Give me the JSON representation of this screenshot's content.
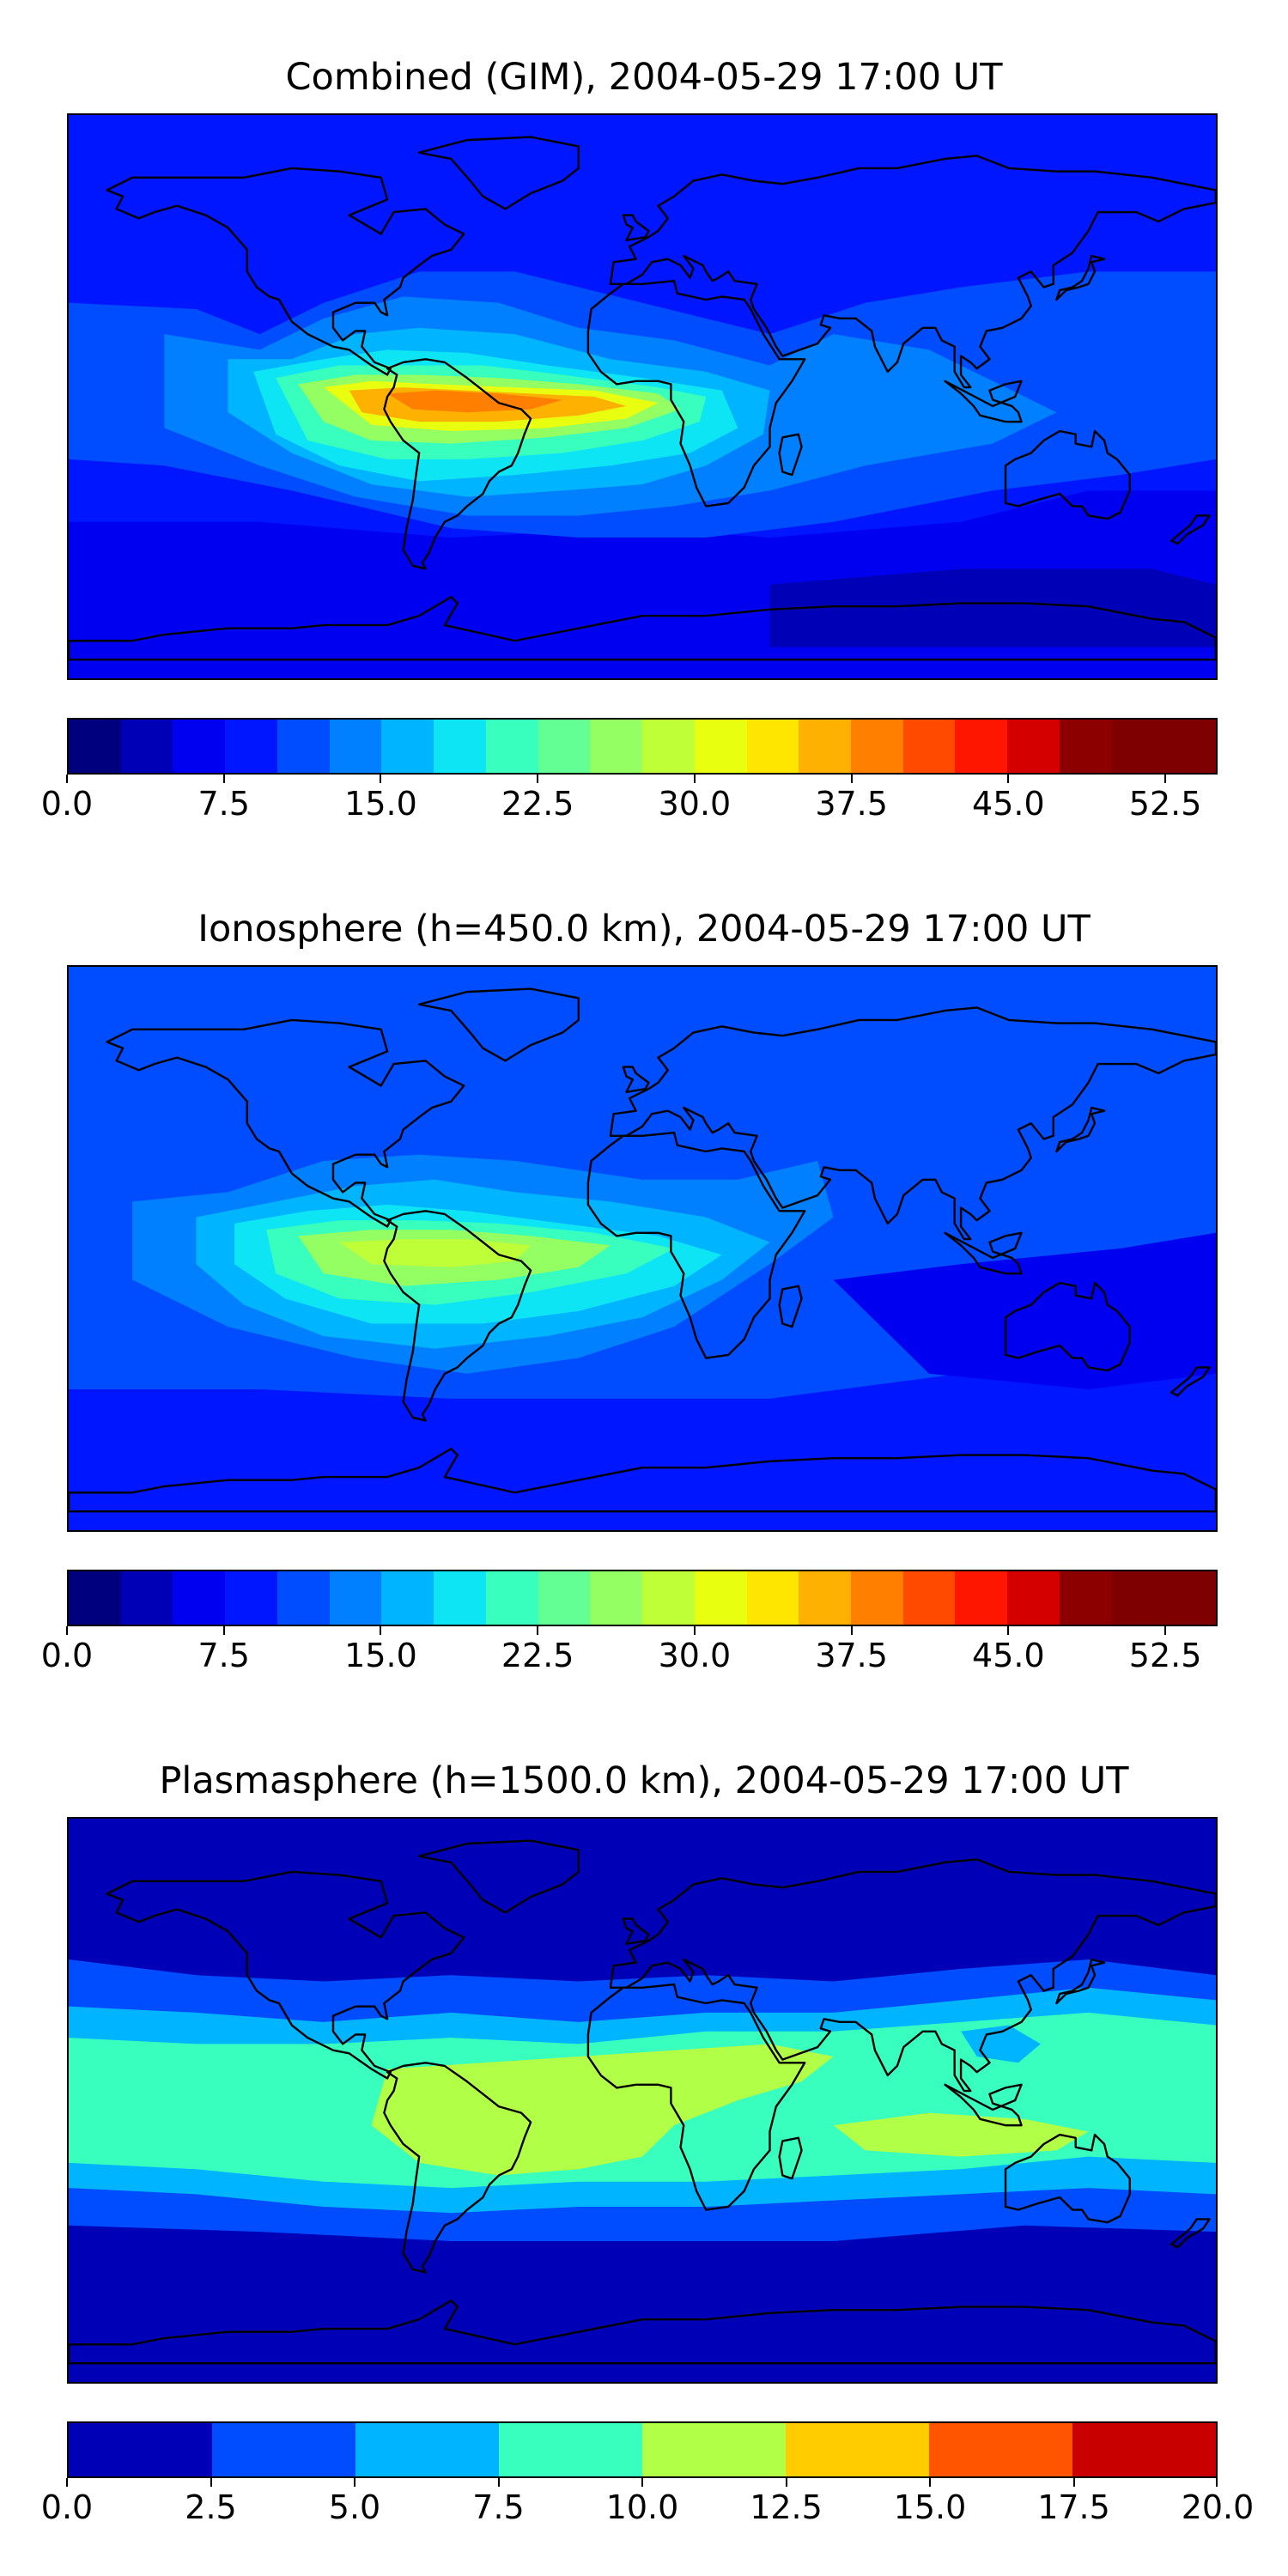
{
  "panels": [
    {
      "title": "Combined (GIM), 2004-05-29 17:00 UT",
      "colorbar": {
        "vmin": 0.0,
        "vmax": 55.0,
        "bins": 22,
        "colors": [
          "#00007f",
          "#0000b6",
          "#0000f1",
          "#0016ff",
          "#004cff",
          "#0080ff",
          "#00b4ff",
          "#0de5f4",
          "#38ffbe",
          "#63ff94",
          "#94ff63",
          "#beff38",
          "#e8ff0f",
          "#ffe600",
          "#ffb100",
          "#ff7f00",
          "#ff4a00",
          "#ff1600",
          "#d40000",
          "#8d0000",
          "#7f0000",
          "#7f0000"
        ],
        "ticks": [
          "0.0",
          "7.5",
          "15.0",
          "22.5",
          "30.0",
          "37.5",
          "45.0",
          "52.5"
        ],
        "tick_values": [
          0.0,
          7.5,
          15.0,
          22.5,
          30.0,
          37.5,
          45.0,
          52.5
        ]
      }
    },
    {
      "title": "Ionosphere  (h=450.0 km), 2004-05-29 17:00 UT",
      "colorbar": {
        "vmin": 0.0,
        "vmax": 55.0,
        "bins": 22,
        "colors": [
          "#00007f",
          "#0000b6",
          "#0000f1",
          "#0016ff",
          "#004cff",
          "#0080ff",
          "#00b4ff",
          "#0de5f4",
          "#38ffbe",
          "#63ff94",
          "#94ff63",
          "#beff38",
          "#e8ff0f",
          "#ffe600",
          "#ffb100",
          "#ff7f00",
          "#ff4a00",
          "#ff1600",
          "#d40000",
          "#8d0000",
          "#7f0000",
          "#7f0000"
        ],
        "ticks": [
          "0.0",
          "7.5",
          "15.0",
          "22.5",
          "30.0",
          "37.5",
          "45.0",
          "52.5"
        ],
        "tick_values": [
          0.0,
          7.5,
          15.0,
          22.5,
          30.0,
          37.5,
          45.0,
          52.5
        ]
      }
    },
    {
      "title": "Plasmasphere (h=1500.0 km), 2004-05-29 17:00 UT",
      "colorbar": {
        "vmin": 0.0,
        "vmax": 20.0,
        "bins": 8,
        "colors": [
          "#0000b6",
          "#004cff",
          "#00b4ff",
          "#38ffbe",
          "#b1ff46",
          "#ffcc00",
          "#ff5500",
          "#c80000"
        ],
        "ticks": [
          "0.0",
          "2.5",
          "5.0",
          "7.5",
          "10.0",
          "12.5",
          "15.0",
          "17.5",
          "20.0"
        ],
        "tick_values": [
          0.0,
          2.5,
          5.0,
          7.5,
          10.0,
          12.5,
          15.0,
          17.5,
          20.0
        ]
      }
    }
  ],
  "chart_data": [
    {
      "type": "heatmap",
      "title": "Combined (GIM), 2004-05-29 17:00 UT",
      "projection": "equirectangular world map",
      "colorbar_range": [
        0.0,
        55.0
      ],
      "colorbar_ticks": [
        0.0,
        7.5,
        15.0,
        22.5,
        30.0,
        37.5,
        45.0,
        52.5
      ],
      "levels": 22,
      "notable_values": {
        "peak_over_south_america_atlantic": 45.0,
        "background_high_latitudes": 10.0
      }
    },
    {
      "type": "heatmap",
      "title": "Ionosphere  (h=450.0 km), 2004-05-29 17:00 UT",
      "projection": "equirectangular world map",
      "colorbar_range": [
        0.0,
        55.0
      ],
      "colorbar_ticks": [
        0.0,
        7.5,
        15.0,
        22.5,
        30.0,
        37.5,
        45.0,
        52.5
      ],
      "levels": 22,
      "notable_values": {
        "peak_over_south_america_atlantic": 32.5,
        "background_high_latitudes": 10.0
      }
    },
    {
      "type": "heatmap",
      "title": "Plasmasphere (h=1500.0 km), 2004-05-29 17:00 UT",
      "projection": "equirectangular world map",
      "colorbar_range": [
        0.0,
        20.0
      ],
      "colorbar_ticks": [
        0.0,
        2.5,
        5.0,
        7.5,
        10.0,
        12.5,
        15.0,
        17.5,
        20.0
      ],
      "levels": 8,
      "notable_values": {
        "equatorial_band": 11.25,
        "high_latitudes": 1.25
      }
    }
  ]
}
